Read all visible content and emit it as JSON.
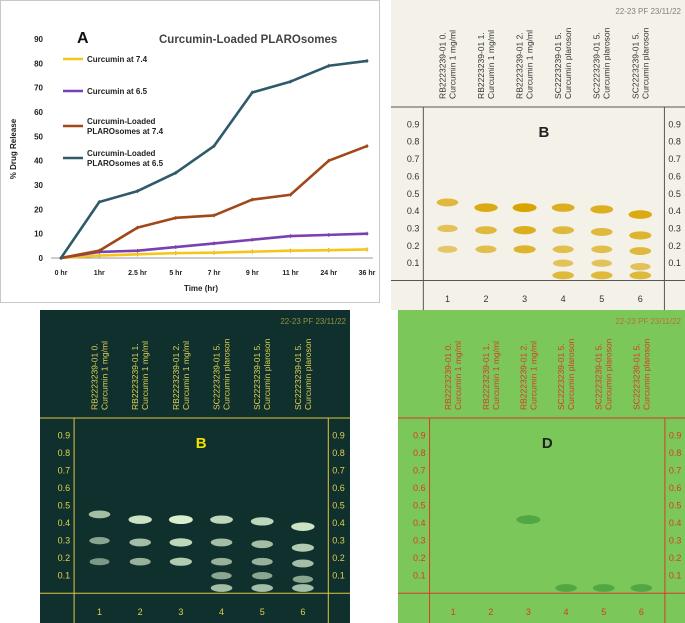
{
  "chart_data": {
    "type": "line",
    "panel_label": "A",
    "title": "Curcumin-Loaded PLAROsomes",
    "xlabel": "Time (hr)",
    "ylabel": "% Drug Release",
    "ylim": [
      0,
      90
    ],
    "yticks": [
      "0",
      "10",
      "20",
      "30",
      "40",
      "50",
      "60",
      "70",
      "80",
      "90"
    ],
    "categories": [
      "0 hr",
      "1hr",
      "2.5 hr",
      "5 hr",
      "7 hr",
      "9 hr",
      "11 hr",
      "24 hr",
      "36 hr"
    ],
    "series": [
      {
        "name": "Curcumin at 7.4",
        "color": "#f5c518",
        "values": [
          0,
          1,
          1.5,
          2,
          2.2,
          2.6,
          3,
          3.2,
          3.5
        ]
      },
      {
        "name": "Curcumin at 6.5",
        "color": "#7a3fb0",
        "values": [
          0,
          2.5,
          3,
          4.5,
          6,
          7.5,
          9,
          9.5,
          10
        ]
      },
      {
        "name": "Curcumin-Loaded PLAROsomes at 7.4",
        "color": "#a0481a",
        "values": [
          0,
          3,
          12.5,
          16.5,
          17.5,
          24,
          26,
          40,
          46
        ]
      },
      {
        "name": "Curcumin-Loaded PLAROsomes at 6.5",
        "color": "#2e5a6a",
        "values": [
          0,
          23,
          27.5,
          35,
          46,
          68,
          72.5,
          79,
          81
        ]
      }
    ],
    "legend": [
      {
        "line1": "Curcumin at 7.4",
        "line2": ""
      },
      {
        "line1": "Curcumin at 6.5",
        "line2": ""
      },
      {
        "line1": "Curcumin-Loaded",
        "line2": "PLAROsomes at 7.4"
      },
      {
        "line1": "Curcumin-Loaded",
        "line2": "PLAROsomes at 6.5"
      }
    ]
  },
  "tlc": {
    "rf_ticks": [
      "0.9",
      "0.8",
      "0.7",
      "0.6",
      "0.5",
      "0.4",
      "0.3",
      "0.2",
      "0.1"
    ],
    "lane_numbers": [
      "1",
      "2",
      "3",
      "4",
      "5",
      "6"
    ],
    "lanes": [
      {
        "line1": "RB2223239-01  0.",
        "line2": "Curcumin 1 mg/ml"
      },
      {
        "line1": "RB2223239-01  1.",
        "line2": "Curcumin 1 mg/ml"
      },
      {
        "line1": "RB2223239-01  2.",
        "line2": "Curcumin 1 mg/ml"
      },
      {
        "line1": "SC2223239-01  5.",
        "line2": "Curcumin plaroson"
      },
      {
        "line1": "SC2223239-01  5.",
        "line2": "Curcumin plaroson"
      },
      {
        "line1": "SC2223239-01  5.",
        "line2": "Curcumin plaroson"
      }
    ],
    "header_tag": "22-23 PF 23/11/22",
    "plates": [
      {
        "label": "B",
        "bg": "#f4f1e8",
        "line": "#555555",
        "text": "#333333",
        "label_color": "#222222",
        "spot": "#d8a400"
      },
      {
        "label": "B",
        "bg": "#10302e",
        "line": "#e0c640",
        "text": "#e0d050",
        "label_color": "#f0e000",
        "spot": "#d8f0d0"
      },
      {
        "label": "D",
        "bg": "#7bc75a",
        "line": "#d83a2a",
        "text": "#d83a2a",
        "label_color": "#222222",
        "spot": "#3f9a3a"
      }
    ]
  }
}
